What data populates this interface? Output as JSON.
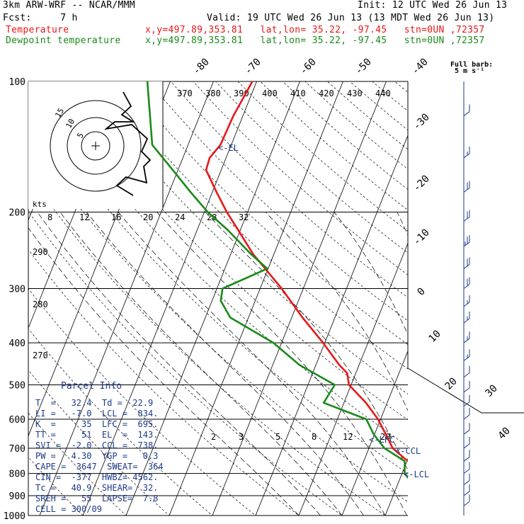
{
  "header": {
    "model": "3km ARW-WRF -- NCAR/MMM",
    "init": "Init: 12 UTC Wed 26 Jun 13",
    "fcst": "Fcst:     7 h",
    "valid": "Valid: 19 UTC Wed 26 Jun 13 (13 MDT Wed 26 Jun 13)",
    "temp_label": "Temperature",
    "dew_label": "Dewpoint temperature",
    "location": "x,y=497.89,353.81   lat,lon= 35.22, -97.45   stn=0UN ,72357"
  },
  "barb_legend": {
    "title": "Full barb:",
    "value": "5 m s⁻¹"
  },
  "colors": {
    "temperature": "#e81818",
    "dewpoint": "#1a8a1a",
    "parcel_text": "#1e3a8a",
    "barbs": "#1e3a8a"
  },
  "markers": {
    "el": "<-EL",
    "lfc": "<-LFC",
    "ccl": "<-CCL",
    "lcl": "<-LCL"
  },
  "parcel_info": {
    "title": "Parcel Info",
    "rows": [
      "T  =   32.4  Td =  22.9",
      "LI =   -7.0  LCL =  834.",
      "K  =     35  LFC =  695.",
      "TT =     51  EL  =  143.",
      "SVI =  -2.0  CCL =  738.",
      "PW =   4.30  YGP =   0.3",
      "CAPE =  3647  SWEAT=  364",
      "CIN =  -377  HWBZ= 4562.",
      "Tc =   40.9  SHEAR=  32.",
      "SREH =   55  LAPSE=  7.8",
      "CELL = 300/09"
    ]
  },
  "hodograph": {
    "units": "kts",
    "ring_labels": [
      "5",
      "10",
      "15"
    ]
  },
  "chart_data": {
    "type": "line",
    "diagram": "skew-T log-p",
    "pressure_levels": [
      "100",
      "200",
      "300",
      "400",
      "500",
      "600",
      "700",
      "800",
      "900",
      "1000"
    ],
    "isotherm_labels": [
      "-80",
      "-70",
      "-60",
      "-50",
      "-40",
      "-30",
      "-20",
      "-10",
      "0",
      "10",
      "20",
      "30",
      "40"
    ],
    "theta_e_labels": [
      "370",
      "380",
      "390",
      "400",
      "410",
      "420",
      "430",
      "440"
    ],
    "mixing_ratio_labels": [
      "2",
      "3",
      "5",
      "8",
      "12",
      "20"
    ],
    "upper_labels": [
      "8",
      "12",
      "16",
      "20",
      "24",
      "28",
      "32"
    ],
    "theta_labels": [
      "290",
      "280",
      "270"
    ],
    "series": [
      {
        "name": "Temperature",
        "p": [
          970,
          950,
          935,
          920,
          900,
          880,
          850,
          830,
          800,
          770,
          740,
          700,
          650,
          600,
          550,
          500,
          470,
          450,
          400,
          350,
          300,
          250,
          220,
          200,
          180,
          160,
          150,
          140,
          120,
          100
        ],
        "t": [
          31.0,
          27.5,
          27.1,
          26.4,
          24.1,
          22.3,
          19.7,
          17.9,
          15.3,
          12.7,
          9.3,
          5.5,
          2.6,
          -0.6,
          -4.9,
          -10.5,
          -12.0,
          -14.6,
          -20.4,
          -27.5,
          -35.0,
          -44.8,
          -50.5,
          -54.8,
          -59.0,
          -63.5,
          -63.8,
          -62.5,
          -62.2,
          -61.0
        ]
      },
      {
        "name": "Dewpoint temperature",
        "p": [
          960,
          940,
          930,
          920,
          900,
          880,
          850,
          800,
          750,
          700,
          650,
          600,
          570,
          550,
          500,
          450,
          400,
          350,
          320,
          300,
          270,
          250,
          220,
          200,
          180,
          160,
          140,
          100
        ],
        "t": [
          22.0,
          22.8,
          23.5,
          21.8,
          21.1,
          19.0,
          13.8,
          10.6,
          9.5,
          3.6,
          -0.2,
          -3.3,
          -10.0,
          -14.7,
          -13.8,
          -23.8,
          -31.9,
          -44.2,
          -48.0,
          -48.7,
          -40.2,
          -45.3,
          -52.9,
          -59.2,
          -65.0,
          -71.2,
          -78.3,
          -85.3
        ]
      }
    ],
    "wind_barbs": [
      {
        "p": 120,
        "speed_kt": 10
      },
      {
        "p": 150,
        "speed_kt": 15
      },
      {
        "p": 180,
        "speed_kt": 20
      },
      {
        "p": 210,
        "speed_kt": 20
      },
      {
        "p": 240,
        "speed_kt": 25
      },
      {
        "p": 270,
        "speed_kt": 20
      },
      {
        "p": 300,
        "speed_kt": 20
      },
      {
        "p": 330,
        "speed_kt": 15
      },
      {
        "p": 360,
        "speed_kt": 15
      },
      {
        "p": 400,
        "speed_kt": 15
      },
      {
        "p": 440,
        "speed_kt": 15
      },
      {
        "p": 480,
        "speed_kt": 10
      },
      {
        "p": 520,
        "speed_kt": 10
      },
      {
        "p": 560,
        "speed_kt": 10
      },
      {
        "p": 600,
        "speed_kt": 10
      },
      {
        "p": 650,
        "speed_kt": 10
      },
      {
        "p": 700,
        "speed_kt": 10
      },
      {
        "p": 750,
        "speed_kt": 10
      },
      {
        "p": 800,
        "speed_kt": 10
      },
      {
        "p": 850,
        "speed_kt": 10
      },
      {
        "p": 900,
        "speed_kt": 10
      },
      {
        "p": 950,
        "speed_kt": 10
      }
    ]
  }
}
